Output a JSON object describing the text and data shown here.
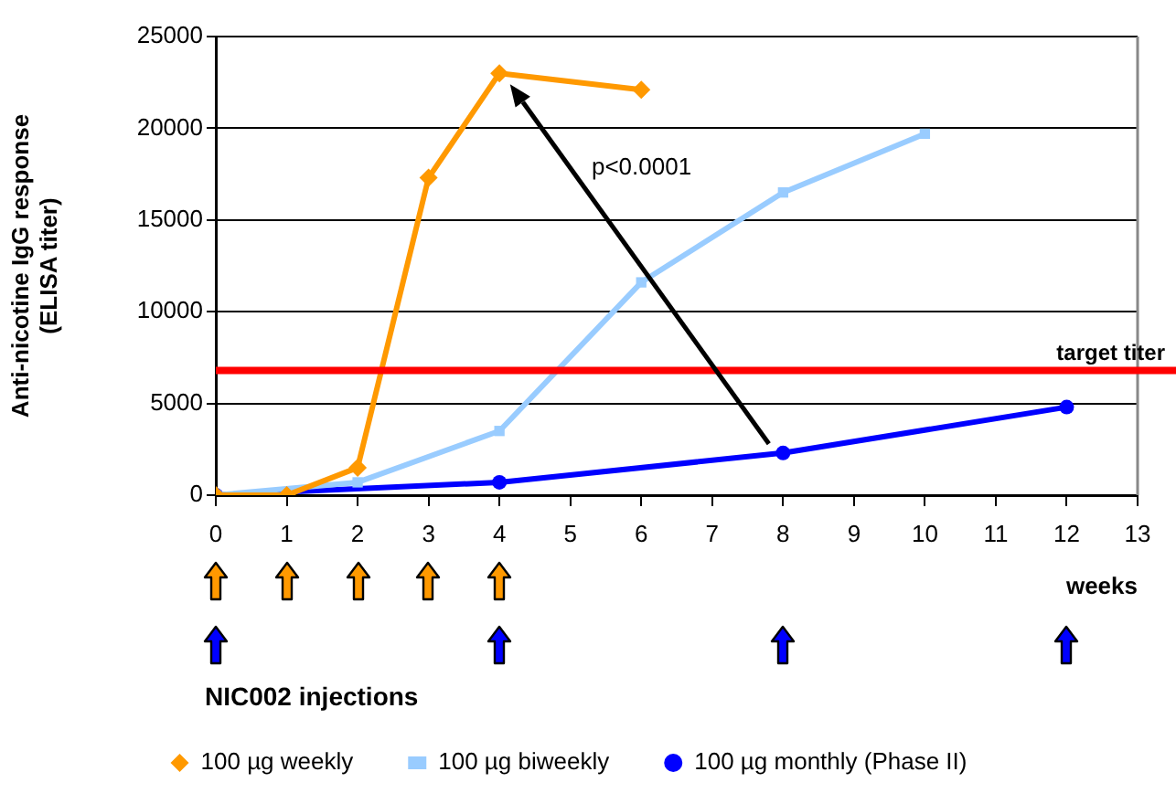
{
  "chart_data": {
    "type": "line",
    "ylabel": "Anti-nicotine IgG response (ELISA titer)",
    "xlabel": "weeks",
    "xlim": [
      0,
      13
    ],
    "xticks": [
      0,
      1,
      2,
      3,
      4,
      5,
      6,
      7,
      8,
      9,
      10,
      11,
      12,
      13
    ],
    "ylim": [
      0,
      25000
    ],
    "yticks": [
      0,
      5000,
      10000,
      15000,
      20000,
      25000
    ],
    "grid": "y",
    "legend": "bottom",
    "line_style": "solid",
    "series": [
      {
        "name": "100 µg weekly",
        "color": "#ff9900",
        "marker": "diamond",
        "x": [
          0,
          1,
          2,
          3,
          4,
          6
        ],
        "values": [
          0,
          0,
          1500,
          17300,
          23000,
          22100
        ]
      },
      {
        "name": "100 µg biweekly",
        "color": "#99ccff",
        "marker": "square",
        "x": [
          0,
          2,
          4,
          6,
          8,
          10
        ],
        "values": [
          0,
          700,
          3500,
          11600,
          16500,
          19700
        ]
      },
      {
        "name": "100 µg monthly (Phase II)",
        "color": "#0000ff",
        "marker": "circle",
        "x": [
          0,
          4,
          8,
          12
        ],
        "values": [
          0,
          700,
          2300,
          4800
        ]
      }
    ],
    "ref_lines": [
      {
        "axis": "y",
        "value": 6800,
        "label": "target titer",
        "color": "#ff0000"
      }
    ],
    "annotations": [
      "p<0.0001",
      "NIC002 injections"
    ]
  }
}
